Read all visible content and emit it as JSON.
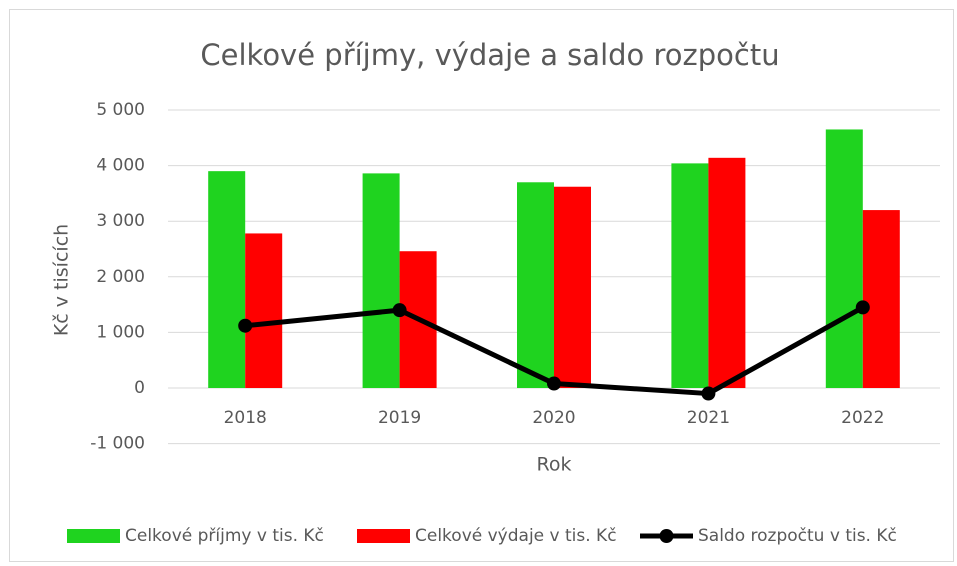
{
  "chart_data": {
    "type": "bar+line",
    "title": "Celkové příjmy, výdaje a saldo rozpočtu",
    "x_label": "Rok",
    "y_label": "Kč v tisících",
    "categories": [
      "2018",
      "2019",
      "2020",
      "2021",
      "2022"
    ],
    "series": [
      {
        "name": "Celkové příjmy v tis. Kč",
        "type": "bar",
        "color": "#1fd31f",
        "values": [
          3900,
          3860,
          3700,
          4040,
          4650
        ]
      },
      {
        "name": "Celkové výdaje v tis. Kč",
        "type": "bar",
        "color": "#ff0000",
        "values": [
          2780,
          2460,
          3620,
          4140,
          3200
        ]
      },
      {
        "name": "Saldo rozpočtu v tis. Kč",
        "type": "line",
        "color": "#000000",
        "values": [
          1120,
          1400,
          80,
          -100,
          1450
        ]
      }
    ],
    "ylim": [
      -1000,
      5000
    ],
    "yticks": [
      {
        "value": -1000,
        "label": "-1 000"
      },
      0,
      {
        "value": 1000,
        "label": "1 000"
      },
      {
        "value": 2000,
        "label": "2 000"
      },
      {
        "value": 3000,
        "label": "3 000"
      },
      {
        "value": 4000,
        "label": "4 000"
      },
      {
        "value": 5000,
        "label": "5 000"
      }
    ],
    "grid": true,
    "legend": "bottom"
  }
}
